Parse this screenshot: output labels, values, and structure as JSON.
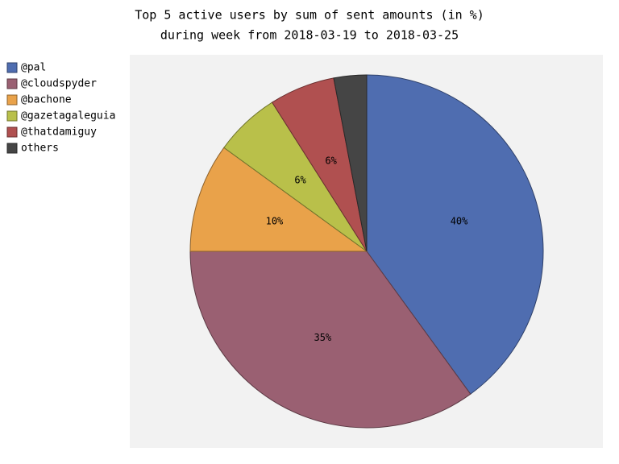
{
  "chart_data": {
    "type": "pie",
    "title": [
      "Top 5 active users by sum of sent amounts (in %)",
      "during week from 2018-03-19 to 2018-03-25"
    ],
    "categories": [
      "@pal",
      "@cloudspyder",
      "@bachone",
      "@gazetagaleguia",
      "@thatdamiguy",
      "others"
    ],
    "values": [
      40,
      35,
      10,
      6,
      6,
      3
    ],
    "value_labels": [
      "40%",
      "35%",
      "10%",
      "6%",
      "6%",
      null
    ],
    "colors": [
      "#4f6db0",
      "#9a6072",
      "#e9a24a",
      "#b9c04a",
      "#b05050",
      "#454545"
    ],
    "legend": "upper left"
  }
}
